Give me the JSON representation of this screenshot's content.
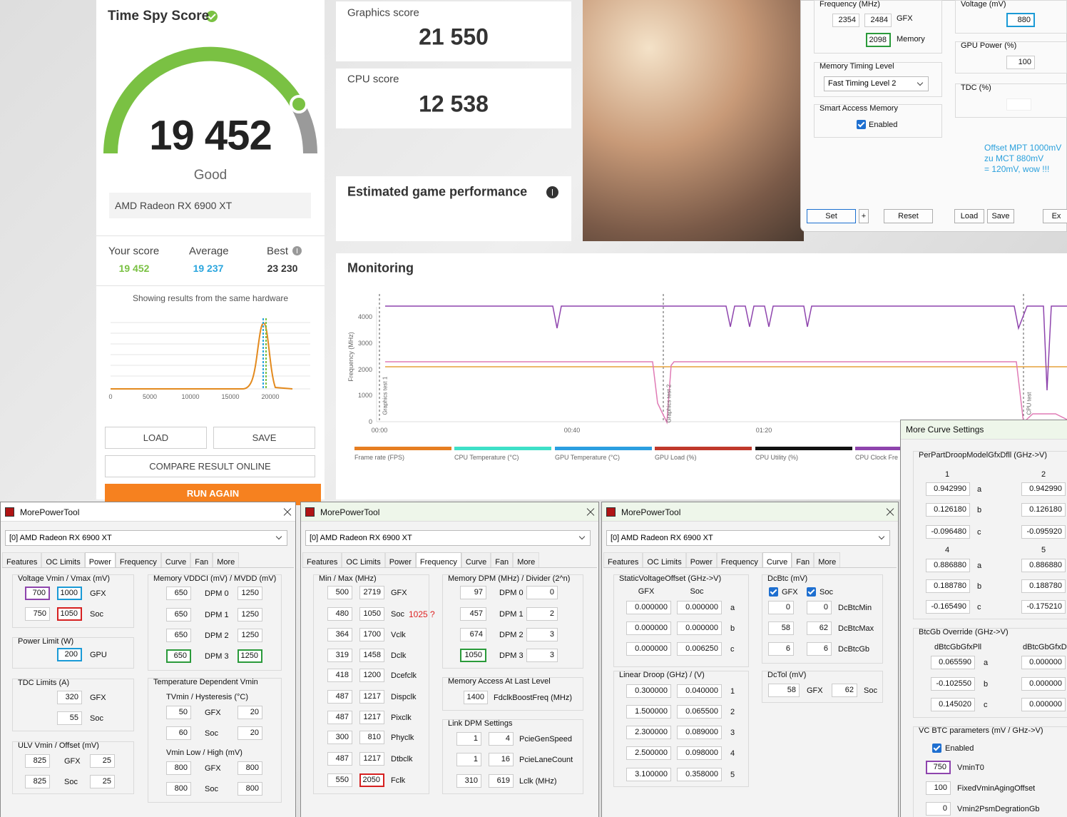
{
  "timespy": {
    "title": "Time Spy Score",
    "score": "19 452",
    "rating": "Good",
    "gpu": "AMD Radeon RX 6900 XT",
    "your_score_label": "Your score",
    "your_score": "19 452",
    "average_label": "Average",
    "average": "19 237",
    "best_label": "Best",
    "best": "23 230",
    "hardware_note": "Showing results from the same hardware",
    "histogram_xticks": [
      0,
      5000,
      10000,
      15000,
      20000
    ],
    "load": "LOAD",
    "save": "SAVE",
    "compare": "COMPARE RESULT ONLINE",
    "run_again": "RUN AGAIN"
  },
  "graphics_score": {
    "label": "Graphics score",
    "value": "21 550"
  },
  "cpu_score": {
    "label": "CPU score",
    "value": "12 538"
  },
  "estimated": {
    "label": "Estimated game performance"
  },
  "monitoring": {
    "title": "Monitoring",
    "y_label": "Frequency (MHz)",
    "yticks": [
      4000,
      3000,
      2000,
      1000,
      0
    ],
    "xticks": [
      "00:00",
      "00:40",
      "01:20"
    ],
    "markers": [
      "Graphics test 1",
      "Graphics test 2",
      "CPU test"
    ],
    "legend": [
      "Frame rate (FPS)",
      "CPU Temperature (°C)",
      "GPU Temperature (°C)",
      "GPU Load (%)",
      "CPU Utility (%)",
      "CPU Clock Fre"
    ]
  },
  "wattman": {
    "frequency_label": "Frequency (MHz)",
    "gfx_min": 2354,
    "gfx_max": 2484,
    "gfx": "GFX",
    "memory_value": 2098,
    "memory": "Memory",
    "voltage_label": "Voltage (mV)",
    "voltage": 880,
    "gpu_power_label": "GPU Power (%)",
    "gpu_power": 100,
    "tdc_label": "TDC (%)",
    "timing_label": "Memory Timing Level",
    "timing": "Fast Timing Level 2",
    "sam_label": "Smart Access Memory",
    "sam": "Enabled",
    "note": [
      "Offset MPT 1000mV",
      "zu MCT 880mV",
      "= 120mV, wow !!!"
    ],
    "set": "Set",
    "plus": "+",
    "reset": "Reset",
    "load": "Load",
    "save": "Save",
    "exit": "Ex"
  },
  "mpt_windows": [
    {
      "title": "MorePowerTool",
      "device": "[0] AMD Radeon RX 6900 XT",
      "tabs": [
        "Features",
        "OC Limits",
        "Power",
        "Frequency",
        "Curve",
        "Fan",
        "More"
      ],
      "voltage": {
        "label": "Voltage Vmin / Vmax (mV)",
        "rows": [
          [
            700,
            1000,
            "GFX"
          ],
          [
            750,
            1050,
            "Soc"
          ]
        ]
      },
      "power_limit": {
        "label": "Power Limit (W)",
        "rows": [
          [
            200,
            "GPU"
          ]
        ]
      },
      "tdc": {
        "label": "TDC Limits (A)",
        "rows": [
          [
            320,
            "GFX"
          ],
          [
            55,
            "Soc"
          ]
        ]
      },
      "ulv": {
        "label": "ULV Vmin / Offset (mV)",
        "rows": [
          [
            825,
            "GFX",
            25
          ],
          [
            825,
            "Soc",
            25
          ]
        ]
      },
      "vddci": {
        "label": "Memory VDDCI (mV) / MVDD (mV)",
        "rows": [
          [
            650,
            "DPM 0",
            1250
          ],
          [
            650,
            "DPM 1",
            1250
          ],
          [
            650,
            "DPM 2",
            1250
          ],
          [
            650,
            "DPM 3",
            1250
          ]
        ]
      },
      "temp_vmin": {
        "label": "Temperature Dependent Vmin",
        "sub1": "TVmin / Hysteresis (°C)",
        "rows1": [
          [
            50,
            "GFX",
            20
          ],
          [
            60,
            "Soc",
            20
          ]
        ],
        "sub2": "Vmin Low / High (mV)",
        "rows2": [
          [
            800,
            "GFX",
            800
          ],
          [
            800,
            "Soc",
            800
          ]
        ]
      }
    },
    {
      "title": "MorePowerTool",
      "device": "[0] AMD Radeon RX 6900 XT",
      "tabs": [
        "Features",
        "OC Limits",
        "Power",
        "Frequency",
        "Curve",
        "Fan",
        "More"
      ],
      "minmax": {
        "label": "Min / Max (MHz)",
        "rows": [
          [
            500,
            2719,
            "GFX"
          ],
          [
            480,
            1050,
            "Soc"
          ],
          [
            364,
            1700,
            "Vclk"
          ],
          [
            319,
            1458,
            "Dclk"
          ],
          [
            418,
            1200,
            "Dcefclk"
          ],
          [
            487,
            1217,
            "Dispclk"
          ],
          [
            487,
            1217,
            "Pixclk"
          ],
          [
            300,
            810,
            "Phyclk"
          ],
          [
            487,
            1217,
            "Dtbclk"
          ],
          [
            550,
            2050,
            "Fclk"
          ]
        ],
        "soc_note": "1025 ?"
      },
      "mem_dpm": {
        "label": "Memory DPM (MHz) / Divider (2^n)",
        "rows": [
          [
            97,
            "DPM 0",
            0
          ],
          [
            457,
            "DPM 1",
            2
          ],
          [
            674,
            "DPM 2",
            3
          ],
          [
            1050,
            "DPM 3",
            3
          ]
        ]
      },
      "mem_access": {
        "label": "Memory Access At Last Level",
        "rows": [
          [
            1400,
            "FdclkBoostFreq (MHz)"
          ]
        ]
      },
      "link_dpm": {
        "label": "Link DPM Settings",
        "rows": [
          [
            1,
            4,
            "PcieGenSpeed"
          ],
          [
            1,
            16,
            "PcieLaneCount"
          ],
          [
            310,
            619,
            "Lclk (MHz)"
          ]
        ]
      }
    },
    {
      "title": "MorePowerTool",
      "device": "[0] AMD Radeon RX 6900 XT",
      "tabs": [
        "Features",
        "OC Limits",
        "Power",
        "Frequency",
        "Curve",
        "Fan",
        "More"
      ],
      "svo": {
        "label": "StaticVoltageOffset (GHz->V)",
        "headers": [
          "GFX",
          "Soc"
        ],
        "rows": [
          [
            "0.000000",
            "0.000000",
            "a"
          ],
          [
            "0.000000",
            "0.000000",
            "b"
          ],
          [
            "0.000000",
            "0.006250",
            "c"
          ]
        ]
      },
      "droop": {
        "label": "Linear Droop (GHz) / (V)",
        "rows": [
          [
            "0.300000",
            "0.040000",
            "1"
          ],
          [
            "1.500000",
            "0.065500",
            "2"
          ],
          [
            "2.300000",
            "0.089000",
            "3"
          ],
          [
            "2.500000",
            "0.098000",
            "4"
          ],
          [
            "3.100000",
            "0.358000",
            "5"
          ]
        ]
      },
      "dcbtc": {
        "label": "DcBtc (mV)",
        "checks": [
          "GFX",
          "Soc"
        ],
        "rows": [
          [
            0,
            0,
            "DcBtcMin"
          ],
          [
            58,
            62,
            "DcBtcMax"
          ],
          [
            6,
            6,
            "DcBtcGb"
          ]
        ]
      },
      "dctol": {
        "label": "DcTol (mV)",
        "rows": [
          [
            58,
            "GFX",
            62,
            "Soc"
          ]
        ]
      }
    }
  ],
  "curve_settings": {
    "title": "More Curve Settings",
    "ppd": {
      "label": "PerPartDroopModelGfxDfll (GHz->V)",
      "headers1": [
        "1",
        "2"
      ],
      "rows1": [
        [
          "0.942990",
          "a",
          "0.942990"
        ],
        [
          "0.126180",
          "b",
          "0.126180"
        ],
        [
          "-0.096480",
          "c",
          "-0.095920"
        ]
      ],
      "headers2": [
        "4",
        "5"
      ],
      "rows2": [
        [
          "0.886880",
          "a",
          "0.886880"
        ],
        [
          "0.188780",
          "b",
          "0.188780"
        ],
        [
          "-0.165490",
          "c",
          "-0.175210"
        ]
      ]
    },
    "btcgb": {
      "label": "BtcGb Override (GHz->V)",
      "headers": [
        "dBtcGbGfxPll",
        "dBtcGbGfxDf"
      ],
      "rows": [
        [
          "0.065590",
          "a",
          "0.000000"
        ],
        [
          "-0.102550",
          "b",
          "0.000000"
        ],
        [
          "0.145020",
          "c",
          "0.000000"
        ]
      ]
    },
    "vcbtc": {
      "label": "VC BTC parameters (mV / GHz->V)",
      "enabled": "Enabled",
      "rows": [
        [
          750,
          "VminT0"
        ],
        [
          100,
          "FixedVminAgingOffset"
        ],
        [
          0,
          "Vmin2PsmDegrationGb"
        ]
      ]
    }
  }
}
